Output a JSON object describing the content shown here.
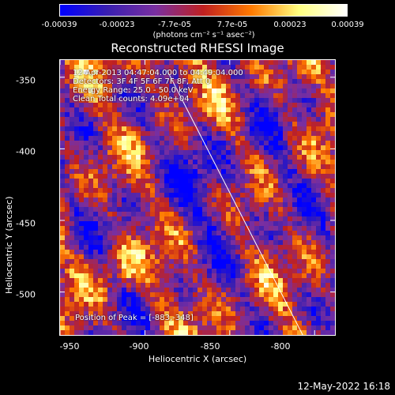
{
  "colorbar": {
    "ticks": [
      "-0.00039",
      "-0.00023",
      "-7.7e-05",
      "7.7e-05",
      "0.00023",
      "0.00039"
    ],
    "units": "(photons cm⁻² s⁻¹ asec⁻²)",
    "colors": [
      "#0000ff",
      "#3a1fb0",
      "#7a2fa0",
      "#c02020",
      "#ff7a00",
      "#ffff80",
      "#ffffff"
    ]
  },
  "chart_data": {
    "type": "heatmap",
    "title": "Reconstructed RHESSI Image",
    "xlabel": "Heliocentric X (arcsec)",
    "ylabel": "Heliocentric Y (arcsec)",
    "xlim": [
      -950,
      -788
    ],
    "ylim": [
      -530,
      -338
    ],
    "x_ticks": [
      -950,
      -900,
      -850,
      -800
    ],
    "y_ticks": [
      -350,
      -400,
      -450,
      -500
    ],
    "x_tick_labels": [
      "-950",
      "-900",
      "-850",
      "-800"
    ],
    "y_tick_labels": [
      "-350",
      "-400",
      "-450",
      "-500"
    ],
    "value_range": [
      -0.00039,
      0.00039
    ],
    "peak": [
      -883,
      -348
    ],
    "limb_line": [
      [
        -887,
        -345
      ],
      [
        -807,
        -530
      ]
    ],
    "annotations": [
      "12-Apr-2013 04:47:04.000 to 04:49:04.000",
      "Detectors: 3F 4F 5F 6F 7F 8F, Att 0",
      "Energy Range: 25.0 - 50.0 keV",
      "Clean     Total counts: 4.09e+04"
    ],
    "peak_label": "Position of Peak = [-883,-348]"
  },
  "footer": {
    "date": "12-May-2022 16:18"
  }
}
